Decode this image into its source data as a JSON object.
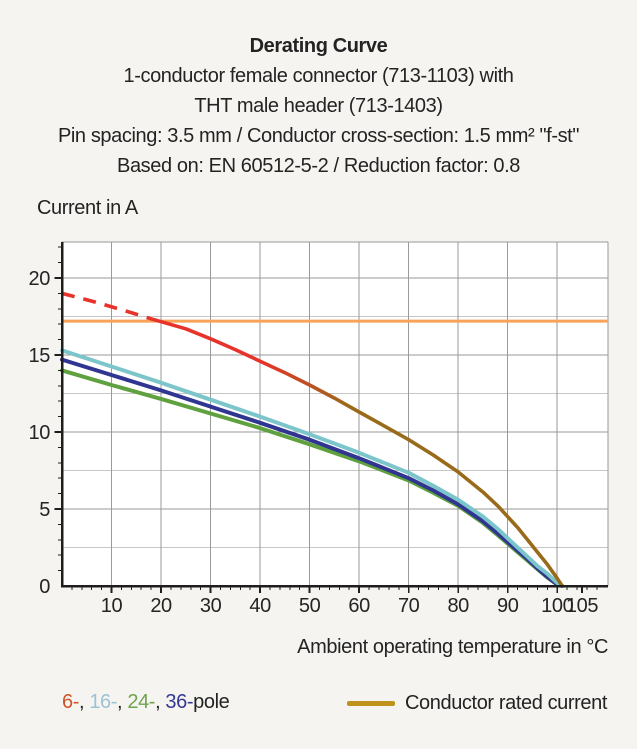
{
  "title": {
    "heading": "Derating Curve",
    "lines": [
      "1-conductor female connector (713-1103) with",
      "THT male header (713-1403)",
      "Pin spacing: 3.5 mm / Conductor cross-section: 1.5 mm² \"f-st\"",
      "Based on: EN 60512-5-2 / Reduction factor: 0.8"
    ]
  },
  "chart_data": {
    "type": "line",
    "title": "Derating Curve",
    "xlabel": "Ambient operating temperature in °C",
    "ylabel": "Current in A",
    "xlim": [
      0,
      110
    ],
    "ylim": [
      0,
      22.3
    ],
    "x_ticks": [
      10,
      20,
      30,
      40,
      50,
      60,
      70,
      80,
      90,
      100,
      105
    ],
    "x_tick_labels": [
      "10",
      "20",
      "30",
      "40",
      "50",
      "60",
      "70",
      "80",
      "90",
      "100",
      "105"
    ],
    "y_ticks": [
      0,
      5,
      10,
      15,
      20
    ],
    "y_tick_labels": [
      "0",
      "5",
      "10",
      "15",
      "20"
    ],
    "grid": {
      "x_step": 10,
      "y_step": 2.5,
      "legend_position": "bottom"
    },
    "colors": {
      "plot_bg": "#FFFFFF",
      "grid_major": "#9A9A9A",
      "grid_minor": "#C6C6C6",
      "axis": "#1E1E1E",
      "text": "#242424"
    },
    "series": [
      {
        "name": "Conductor rated current",
        "type": "hline",
        "y_value": 17.2,
        "color": "#F8A256",
        "width": 3
      },
      {
        "name": "24-pole",
        "type": "line",
        "color": "#5FA13F",
        "width": 4,
        "x": [
          0,
          10,
          20,
          30,
          40,
          50,
          60,
          70,
          75,
          80,
          85,
          88,
          90,
          92,
          94,
          96,
          98,
          100,
          101
        ],
        "y": [
          14.0,
          13.05,
          12.15,
          11.2,
          10.25,
          9.2,
          8.1,
          6.85,
          6.05,
          5.2,
          4.1,
          3.3,
          2.75,
          2.2,
          1.65,
          1.1,
          0.55,
          0.1,
          0
        ]
      },
      {
        "name": "36-pole",
        "type": "line",
        "color": "#2F3590",
        "width": 4,
        "x": [
          0,
          10,
          20,
          30,
          40,
          50,
          60,
          70,
          75,
          80,
          85,
          88,
          90,
          92,
          94,
          96,
          98,
          100,
          101
        ],
        "y": [
          14.7,
          13.7,
          12.7,
          11.65,
          10.6,
          9.5,
          8.3,
          7.0,
          6.2,
          5.3,
          4.2,
          3.4,
          2.85,
          2.3,
          1.75,
          1.15,
          0.6,
          0.1,
          0
        ]
      },
      {
        "name": "16-pole",
        "type": "line",
        "color": "#7CC6CB",
        "width": 4,
        "x": [
          0,
          10,
          20,
          30,
          40,
          50,
          60,
          70,
          75,
          80,
          85,
          88,
          90,
          92,
          94,
          96,
          98,
          100,
          101
        ],
        "y": [
          15.3,
          14.25,
          13.2,
          12.1,
          11.0,
          9.85,
          8.65,
          7.35,
          6.5,
          5.6,
          4.5,
          3.7,
          3.1,
          2.5,
          1.9,
          1.3,
          0.8,
          0.2,
          0
        ]
      },
      {
        "name": "6-pole",
        "type": "line",
        "color_start": "#E7332A",
        "color_end": "#9A6A1B",
        "gradient_x_range": [
          40,
          58
        ],
        "dash_until_x": 18,
        "dash_pattern": "13 9",
        "width": 3.6,
        "x": [
          0,
          6,
          12,
          18,
          25,
          30,
          35,
          40,
          45,
          50,
          55,
          60,
          65,
          70,
          75,
          80,
          85,
          88,
          90,
          92,
          94,
          96,
          98,
          100,
          101
        ],
        "y": [
          19.0,
          18.5,
          17.95,
          17.35,
          16.7,
          16.05,
          15.35,
          14.6,
          13.85,
          13.05,
          12.2,
          11.3,
          10.4,
          9.5,
          8.5,
          7.4,
          6.1,
          5.2,
          4.5,
          3.8,
          3.0,
          2.2,
          1.4,
          0.5,
          0
        ]
      }
    ]
  },
  "legend": {
    "pole_items": [
      {
        "label": "6-",
        "color": "#CE5428"
      },
      {
        "label": "16-",
        "color": "#9CC3D5"
      },
      {
        "label": "24-",
        "color": "#70A34E"
      },
      {
        "label": "36-",
        "color": "#35388F"
      }
    ],
    "separator": ", ",
    "pole_suffix": "pole",
    "text_color": "#232323",
    "rated": {
      "label": "Conductor rated current",
      "swatch_color": "#BF921E"
    }
  }
}
